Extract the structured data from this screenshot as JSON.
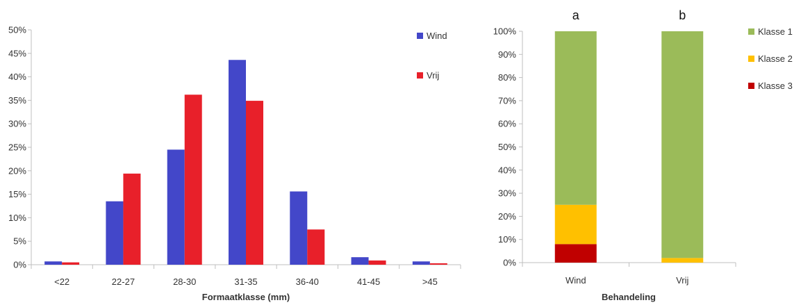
{
  "chart_data": [
    {
      "type": "bar",
      "title": "",
      "xlabel": "Formaatklasse (mm)",
      "ylabel": "",
      "ylim": [
        0,
        50
      ],
      "ytick_labels": [
        "0%",
        "5%",
        "10%",
        "15%",
        "20%",
        "25%",
        "30%",
        "35%",
        "40%",
        "45%",
        "50%"
      ],
      "categories": [
        "<22",
        "22-27",
        "28-30",
        "31-35",
        "36-40",
        "41-45",
        ">45"
      ],
      "series": [
        {
          "name": "Wind",
          "color": "#4347c9",
          "values": [
            0.7,
            13.5,
            24.5,
            43.6,
            15.6,
            1.6,
            0.7
          ]
        },
        {
          "name": "Vrij",
          "color": "#e8202a",
          "values": [
            0.5,
            19.4,
            36.2,
            34.9,
            7.5,
            0.9,
            0.3
          ]
        }
      ],
      "legend_position": "top-right",
      "grid": false
    },
    {
      "type": "bar",
      "stacked": true,
      "title": "",
      "xlabel": "Behandeling",
      "ylabel": "",
      "ylim": [
        0,
        100
      ],
      "ytick_labels": [
        "0%",
        "10%",
        "20%",
        "30%",
        "40%",
        "50%",
        "60%",
        "70%",
        "80%",
        "90%",
        "100%"
      ],
      "categories": [
        "Wind",
        "Vrij"
      ],
      "annotations": [
        "a",
        "b"
      ],
      "series": [
        {
          "name": "Klasse 3",
          "color": "#c00000",
          "values": [
            8,
            0
          ]
        },
        {
          "name": "Klasse 2",
          "color": "#ffc000",
          "values": [
            17,
            2
          ]
        },
        {
          "name": "Klasse 1",
          "color": "#9bbb59",
          "values": [
            75,
            98
          ]
        }
      ],
      "legend_order": [
        "Klasse 1",
        "Klasse 2",
        "Klasse 3"
      ],
      "legend_position": "right",
      "grid": false
    }
  ]
}
